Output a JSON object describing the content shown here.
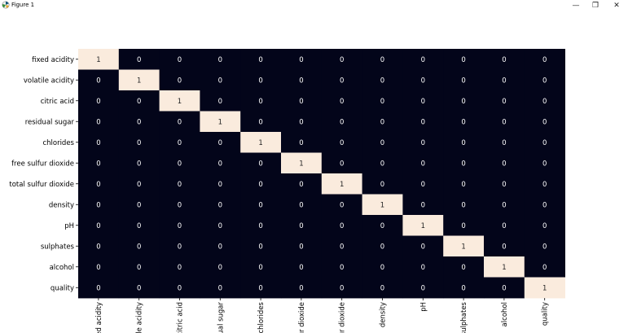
{
  "window": {
    "title": "Figure 1",
    "icon": "matplotlib-icon",
    "buttons": {
      "minimize": "—",
      "maximize": "❐",
      "close": "✕"
    }
  },
  "colors": {
    "cell_zero": "#03051a",
    "cell_one": "#faebdd",
    "text_on_zero": "#ffffff",
    "text_on_one": "#262626"
  },
  "chart_data": {
    "type": "heatmap",
    "title": "",
    "xlabel": "",
    "ylabel": "",
    "row_labels": [
      "fixed acidity",
      "volatile acidity",
      "citric acid",
      "residual sugar",
      "chlorides",
      "free sulfur dioxide",
      "total sulfur dioxide",
      "density",
      "pH",
      "sulphates",
      "alcohol",
      "quality"
    ],
    "col_labels": [
      "ed acidity",
      "le acidity",
      "citric acid",
      "ual sugar",
      "chlorides",
      "ur dioxide",
      "ur dioxide",
      "density",
      "pH",
      "sulphates",
      "alcohol",
      "quality"
    ],
    "values": [
      [
        1,
        0,
        0,
        0,
        0,
        0,
        0,
        0,
        0,
        0,
        0,
        0
      ],
      [
        0,
        1,
        0,
        0,
        0,
        0,
        0,
        0,
        0,
        0,
        0,
        0
      ],
      [
        0,
        0,
        1,
        0,
        0,
        0,
        0,
        0,
        0,
        0,
        0,
        0
      ],
      [
        0,
        0,
        0,
        1,
        0,
        0,
        0,
        0,
        0,
        0,
        0,
        0
      ],
      [
        0,
        0,
        0,
        0,
        1,
        0,
        0,
        0,
        0,
        0,
        0,
        0
      ],
      [
        0,
        0,
        0,
        0,
        0,
        1,
        0,
        0,
        0,
        0,
        0,
        0
      ],
      [
        0,
        0,
        0,
        0,
        0,
        0,
        1,
        0,
        0,
        0,
        0,
        0
      ],
      [
        0,
        0,
        0,
        0,
        0,
        0,
        0,
        1,
        0,
        0,
        0,
        0
      ],
      [
        0,
        0,
        0,
        0,
        0,
        0,
        0,
        0,
        1,
        0,
        0,
        0
      ],
      [
        0,
        0,
        0,
        0,
        0,
        0,
        0,
        0,
        0,
        1,
        0,
        0
      ],
      [
        0,
        0,
        0,
        0,
        0,
        0,
        0,
        0,
        0,
        0,
        1,
        0
      ],
      [
        0,
        0,
        0,
        0,
        0,
        0,
        0,
        0,
        0,
        0,
        0,
        1
      ]
    ],
    "annotations": true,
    "colorbar": false
  }
}
